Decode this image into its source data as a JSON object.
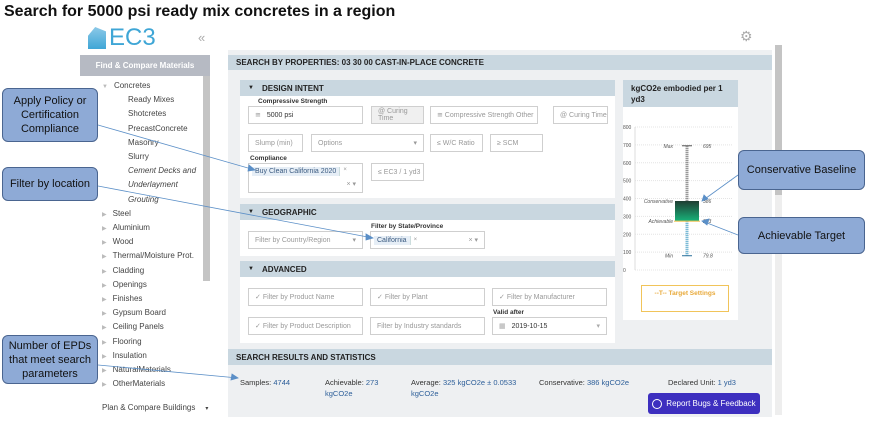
{
  "title": "Search for 5000 psi ready mix concretes in a region",
  "logo": "EC3",
  "sidebar": {
    "header": "Find & Compare Materials",
    "items": [
      {
        "label": "Concretes",
        "indent": 1,
        "open": true
      },
      {
        "label": "Ready Mixes",
        "indent": 2
      },
      {
        "label": "Shotcretes",
        "indent": 2
      },
      {
        "label": "PrecastConcrete",
        "indent": 2
      },
      {
        "label": "Masonry",
        "indent": 2
      },
      {
        "label": "Slurry",
        "indent": 2
      },
      {
        "label": "Cement Decks and",
        "indent": 2,
        "italic": true
      },
      {
        "label": "Underlayment",
        "indent": 2,
        "italic": true
      },
      {
        "label": "Grouting",
        "indent": 2,
        "italic": true
      },
      {
        "label": "Steel",
        "indent": 1
      },
      {
        "label": "Aluminium",
        "indent": 1
      },
      {
        "label": "Wood",
        "indent": 1
      },
      {
        "label": "Thermal/Moisture Prot.",
        "indent": 1
      },
      {
        "label": "Cladding",
        "indent": 1
      },
      {
        "label": "Openings",
        "indent": 1
      },
      {
        "label": "Finishes",
        "indent": 1
      },
      {
        "label": "Gypsum Board",
        "indent": 1
      },
      {
        "label": "Ceiling Panels",
        "indent": 1
      },
      {
        "label": "Flooring",
        "indent": 1
      },
      {
        "label": "Insulation",
        "indent": 1
      },
      {
        "label": "NaturalMaterials",
        "indent": 1
      },
      {
        "label": "OtherMaterials",
        "indent": 1
      }
    ],
    "footer": "Plan & Compare Buildings"
  },
  "main": {
    "header": "SEARCH BY PROPERTIES: 03 30 00 CAST-IN-PLACE CONCRETE",
    "design": {
      "title": "DESIGN INTENT",
      "cs_label": "Compressive Strength",
      "cs_value": "5000 psi",
      "curing": "@ Curing Time",
      "cs_other": "≅ Compressive Strength Other",
      "curing2": "@ Curing Time",
      "slump": "Slump (min)",
      "options": "Options",
      "wc": "≤ W/C Ratio",
      "scm": "≥ SCM",
      "compliance_label": "Compliance",
      "compliance_tag": "Buy Clean California 2020",
      "ec3": "≤ EC3 / 1 yd3"
    },
    "geo": {
      "title": "GEOGRAPHIC",
      "country": "Filter by Country/Region",
      "state_label": "Filter by State/Province",
      "state_tag": "California"
    },
    "adv": {
      "title": "ADVANCED",
      "product": "Filter by Product Name",
      "plant": "Filter by Plant",
      "manufacturer": "Filter by Manufacturer",
      "description": "Filter by Product Description",
      "standards": "Filter by Industry standards",
      "valid_label": "Valid after",
      "valid_value": "2019-10-15"
    },
    "results": {
      "title": "SEARCH RESULTS AND STATISTICS",
      "samples_label": "Samples: ",
      "samples": "4744",
      "ach_label": "Achievable: ",
      "ach": "273 kgCO2e",
      "avg_label": "Average: ",
      "avg": "325 kgCO2e ± 0.0533 kgCO2e",
      "cons_label": "Conservative: ",
      "cons": "386 kgCO2e",
      "unit_label": "Declared Unit: ",
      "unit": "1 yd3"
    }
  },
  "chart_data": {
    "type": "box",
    "title": "kgCO2e embodied per 1 yd3",
    "ylim": [
      0,
      800
    ],
    "yticks": [
      0,
      100,
      200,
      300,
      400,
      500,
      600,
      700,
      800
    ],
    "min": 79.8,
    "achievable": 273,
    "conservative": 386,
    "max": 695,
    "labels": {
      "max": "Max",
      "min": "Min",
      "conservative": "Conservative",
      "achievable": "Achievable"
    },
    "value_labels": {
      "max": "695",
      "min": "79.8",
      "conservative": "386",
      "achievable": "273"
    }
  },
  "target_button": "--T-- Target Settings",
  "report_button": "Report Bugs & Feedback",
  "callouts": {
    "policy": "Apply Policy or Certification Compliance",
    "location": "Filter by location",
    "epds": "Number of EPDs that meet search parameters",
    "conservative": "Conservative Baseline",
    "achievable": "Achievable Target"
  },
  "colors": {
    "callout": "#8eaad6",
    "accent": "#2c5e99",
    "report": "#3d2fbf",
    "section": "#c9d7e0"
  }
}
